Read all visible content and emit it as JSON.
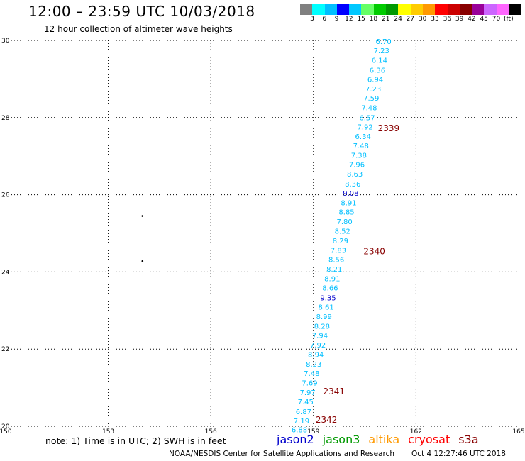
{
  "header": {
    "title": "12:00 – 23:59 UTC 10/03/2018",
    "subtitle": "12 hour collection of altimeter wave heights"
  },
  "colorbar": {
    "colors": [
      "#808080",
      "#00ffff",
      "#00bfff",
      "#0000ff",
      "#00c8ff",
      "#66ff66",
      "#00cc00",
      "#009900",
      "#ffff00",
      "#ffcc00",
      "#ff9900",
      "#ff0000",
      "#cc0000",
      "#880000",
      "#990099",
      "#cc66ff",
      "#ff66ff",
      "#000000"
    ],
    "labels": [
      "3",
      "6",
      "9",
      "12",
      "15",
      "18",
      "21",
      "24",
      "27",
      "30",
      "33",
      "36",
      "39",
      "42",
      "45",
      "70",
      "(ft)"
    ]
  },
  "chart_data": {
    "type": "scatter",
    "xlim": [
      150,
      165
    ],
    "ylim": [
      20,
      30
    ],
    "x_ticks": [
      "150",
      "153",
      "156",
      "159",
      "162",
      "165"
    ],
    "y_ticks": [
      {
        "value": 20,
        "label": "20"
      },
      {
        "value": 22,
        "label": "22"
      },
      {
        "value": 24,
        "label": "24"
      },
      {
        "value": 26,
        "label": "26"
      },
      {
        "value": 28,
        "label": "28"
      },
      {
        "value": 30,
        "label": "30"
      }
    ],
    "grid": "dotted",
    "points": [
      {
        "lon": 161.05,
        "lat": 29.98,
        "label": "6.70",
        "color": "#00bfff"
      },
      {
        "lon": 160.99,
        "lat": 29.74,
        "label": "7.23",
        "color": "#00bfff"
      },
      {
        "lon": 160.93,
        "lat": 29.49,
        "label": "6.14",
        "color": "#00bfff"
      },
      {
        "lon": 160.87,
        "lat": 29.24,
        "label": "6.36",
        "color": "#00bfff"
      },
      {
        "lon": 160.81,
        "lat": 29.0,
        "label": "6.94",
        "color": "#00bfff"
      },
      {
        "lon": 160.75,
        "lat": 28.75,
        "label": "7.23",
        "color": "#00bfff"
      },
      {
        "lon": 160.69,
        "lat": 28.51,
        "label": "7.59",
        "color": "#00bfff"
      },
      {
        "lon": 160.63,
        "lat": 28.26,
        "label": "7.48",
        "color": "#00bfff"
      },
      {
        "lon": 160.57,
        "lat": 28.01,
        "label": "6.57",
        "color": "#00bfff"
      },
      {
        "lon": 160.51,
        "lat": 27.77,
        "label": "7.92",
        "color": "#00bfff"
      },
      {
        "lon": 160.45,
        "lat": 27.52,
        "label": "6.34",
        "color": "#00bfff"
      },
      {
        "lon": 160.39,
        "lat": 27.28,
        "label": "7.48",
        "color": "#00bfff"
      },
      {
        "lon": 160.33,
        "lat": 27.03,
        "label": "7.38",
        "color": "#00bfff"
      },
      {
        "lon": 160.27,
        "lat": 26.79,
        "label": "7.96",
        "color": "#00bfff"
      },
      {
        "lon": 160.21,
        "lat": 26.54,
        "label": "8.63",
        "color": "#00bfff"
      },
      {
        "lon": 160.15,
        "lat": 26.29,
        "label": "8.36",
        "color": "#00bfff"
      },
      {
        "lon": 160.09,
        "lat": 26.05,
        "label": "9.08",
        "color": "#0000cc"
      },
      {
        "lon": 160.03,
        "lat": 25.8,
        "label": "8.91",
        "color": "#00bfff"
      },
      {
        "lon": 159.97,
        "lat": 25.56,
        "label": "8.85",
        "color": "#00bfff"
      },
      {
        "lon": 159.91,
        "lat": 25.31,
        "label": "7.80",
        "color": "#00bfff"
      },
      {
        "lon": 159.85,
        "lat": 25.06,
        "label": "8.52",
        "color": "#00bfff"
      },
      {
        "lon": 159.79,
        "lat": 24.82,
        "label": "8.29",
        "color": "#00bfff"
      },
      {
        "lon": 159.73,
        "lat": 24.57,
        "label": "7.83",
        "color": "#00bfff"
      },
      {
        "lon": 159.67,
        "lat": 24.33,
        "label": "8.56",
        "color": "#00bfff"
      },
      {
        "lon": 159.61,
        "lat": 24.08,
        "label": "8.21",
        "color": "#00bfff"
      },
      {
        "lon": 159.55,
        "lat": 23.83,
        "label": "8.91",
        "color": "#00bfff"
      },
      {
        "lon": 159.49,
        "lat": 23.59,
        "label": "8.66",
        "color": "#00bfff"
      },
      {
        "lon": 159.43,
        "lat": 23.34,
        "label": "9.35",
        "color": "#0000cc"
      },
      {
        "lon": 159.37,
        "lat": 23.1,
        "label": "8.61",
        "color": "#00bfff"
      },
      {
        "lon": 159.31,
        "lat": 22.85,
        "label": "8.99",
        "color": "#00bfff"
      },
      {
        "lon": 159.25,
        "lat": 22.6,
        "label": "8.28",
        "color": "#00bfff"
      },
      {
        "lon": 159.19,
        "lat": 22.36,
        "label": "7.94",
        "color": "#00bfff"
      },
      {
        "lon": 159.13,
        "lat": 22.11,
        "label": "7.92",
        "color": "#00bfff"
      },
      {
        "lon": 159.07,
        "lat": 21.87,
        "label": "8.94",
        "color": "#00bfff"
      },
      {
        "lon": 159.01,
        "lat": 21.62,
        "label": "8.23",
        "color": "#00bfff"
      },
      {
        "lon": 158.95,
        "lat": 21.38,
        "label": "7.48",
        "color": "#00bfff"
      },
      {
        "lon": 158.89,
        "lat": 21.13,
        "label": "7.69",
        "color": "#00bfff"
      },
      {
        "lon": 158.83,
        "lat": 20.88,
        "label": "7.97",
        "color": "#00bfff"
      },
      {
        "lon": 158.77,
        "lat": 20.64,
        "label": "7.45",
        "color": "#00bfff"
      },
      {
        "lon": 158.71,
        "lat": 20.39,
        "label": "6.87",
        "color": "#00bfff"
      },
      {
        "lon": 158.65,
        "lat": 20.15,
        "label": "7.19",
        "color": "#00bfff"
      },
      {
        "lon": 158.59,
        "lat": 19.92,
        "label": "6.88",
        "color": "#00bfff"
      }
    ],
    "time_markers": [
      {
        "lon": 161.2,
        "lat": 27.74,
        "label": "2339"
      },
      {
        "lon": 160.78,
        "lat": 24.55,
        "label": "2340"
      },
      {
        "lon": 159.6,
        "lat": 20.92,
        "label": "2341"
      },
      {
        "lon": 159.38,
        "lat": 20.18,
        "label": "2342"
      }
    ],
    "dots": [
      {
        "lon": 154.0,
        "lat": 25.45
      },
      {
        "lon": 154.0,
        "lat": 24.28
      }
    ]
  },
  "footer": {
    "note": "note: 1) Time is in UTC; 2) SWH is in feet",
    "satellites": [
      {
        "name": "jason2",
        "color": "#0000cc"
      },
      {
        "name": "jason3",
        "color": "#009900"
      },
      {
        "name": "altika",
        "color": "#ff9900"
      },
      {
        "name": "cryosat",
        "color": "#ff0000"
      },
      {
        "name": "s3a",
        "color": "#880000"
      }
    ],
    "credit": "NOAA/NESDIS Center for Satellite Applications and Research",
    "timestamp": "Oct  4 12:27:46 UTC 2018"
  }
}
